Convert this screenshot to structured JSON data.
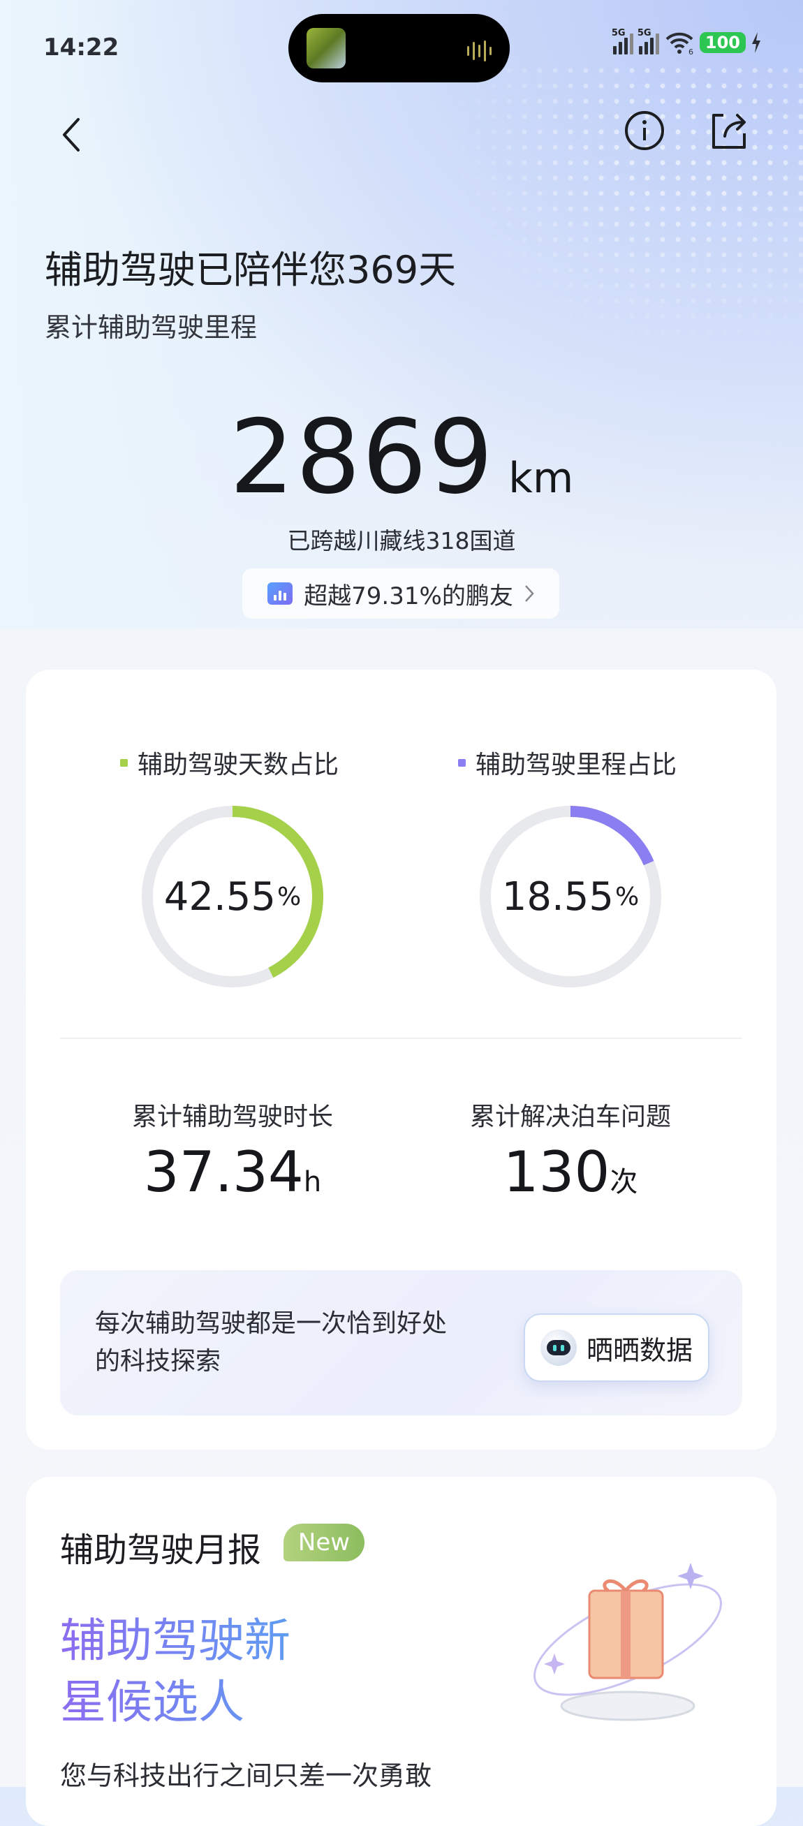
{
  "status_bar": {
    "time": "14:22",
    "net1": "5G",
    "net2": "5G",
    "wifi_sub": "6",
    "battery": "100"
  },
  "header": {
    "back": "back",
    "info": "info",
    "share": "share"
  },
  "hero": {
    "title": "辅助驾驶已陪伴您369天",
    "subtitle": "累计辅助驾驶里程",
    "distance": "2869",
    "distance_unit": "km",
    "route": "已跨越川藏线318国道",
    "rank": "超越79.31%的鹏友"
  },
  "ratios": [
    {
      "label": "辅助驾驶天数占比",
      "value": "42.55",
      "unit": "%",
      "fraction": 0.4255,
      "color": "#a4d04a"
    },
    {
      "label": "辅助驾驶里程占比",
      "value": "18.55",
      "unit": "%",
      "fraction": 0.1855,
      "color": "#8a7ef0"
    }
  ],
  "stats": [
    {
      "label": "累计辅助驾驶时长",
      "value": "37.34",
      "unit": "h"
    },
    {
      "label": "累计解决泊车问题",
      "value": "130",
      "unit": "次"
    }
  ],
  "banner": {
    "text": "每次辅助驾驶都是一次恰到好处的科技探索",
    "button": "晒晒数据"
  },
  "monthly": {
    "title": "辅助驾驶月报",
    "badge": "New",
    "headline1": "辅助驾驶新",
    "headline2": "星候选人",
    "teaser": "您与科技出行之间只差一次勇敢"
  }
}
